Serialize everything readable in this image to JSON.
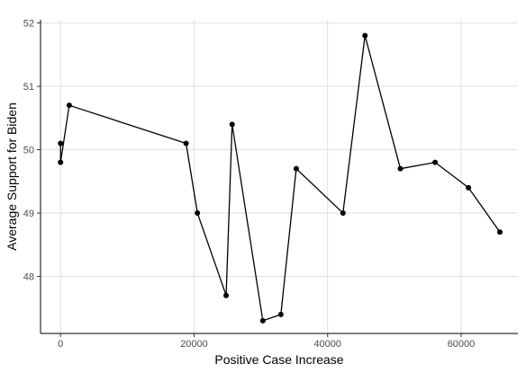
{
  "chart_data": {
    "type": "line",
    "title": "",
    "xlabel": "Positive Case Increase",
    "ylabel": "Average Support for Biden",
    "xlim": [
      -3000,
      68500
    ],
    "ylim": [
      47.1,
      52.05
    ],
    "x_ticks": [
      0,
      20000,
      40000,
      60000
    ],
    "x_tick_labels": [
      "0",
      "20000",
      "40000",
      "60000"
    ],
    "y_ticks": [
      48,
      49,
      50,
      51,
      52
    ],
    "y_tick_labels": [
      "48",
      "49",
      "50",
      "51",
      "52"
    ],
    "grid": true,
    "series": [
      {
        "points": [
          {
            "x": 0,
            "y": 50.1
          },
          {
            "x": 0,
            "y": 49.8
          },
          {
            "x": 1300,
            "y": 50.7
          },
          {
            "x": 18800,
            "y": 50.1
          },
          {
            "x": 20500,
            "y": 49.0
          },
          {
            "x": 24800,
            "y": 47.7
          },
          {
            "x": 25700,
            "y": 50.4
          },
          {
            "x": 30300,
            "y": 47.3
          },
          {
            "x": 33000,
            "y": 47.4
          },
          {
            "x": 35300,
            "y": 49.7
          },
          {
            "x": 42300,
            "y": 49.0
          },
          {
            "x": 45600,
            "y": 51.8
          },
          {
            "x": 50900,
            "y": 49.7
          },
          {
            "x": 56100,
            "y": 49.8
          },
          {
            "x": 61100,
            "y": 49.4
          },
          {
            "x": 65800,
            "y": 48.7
          }
        ]
      }
    ]
  }
}
